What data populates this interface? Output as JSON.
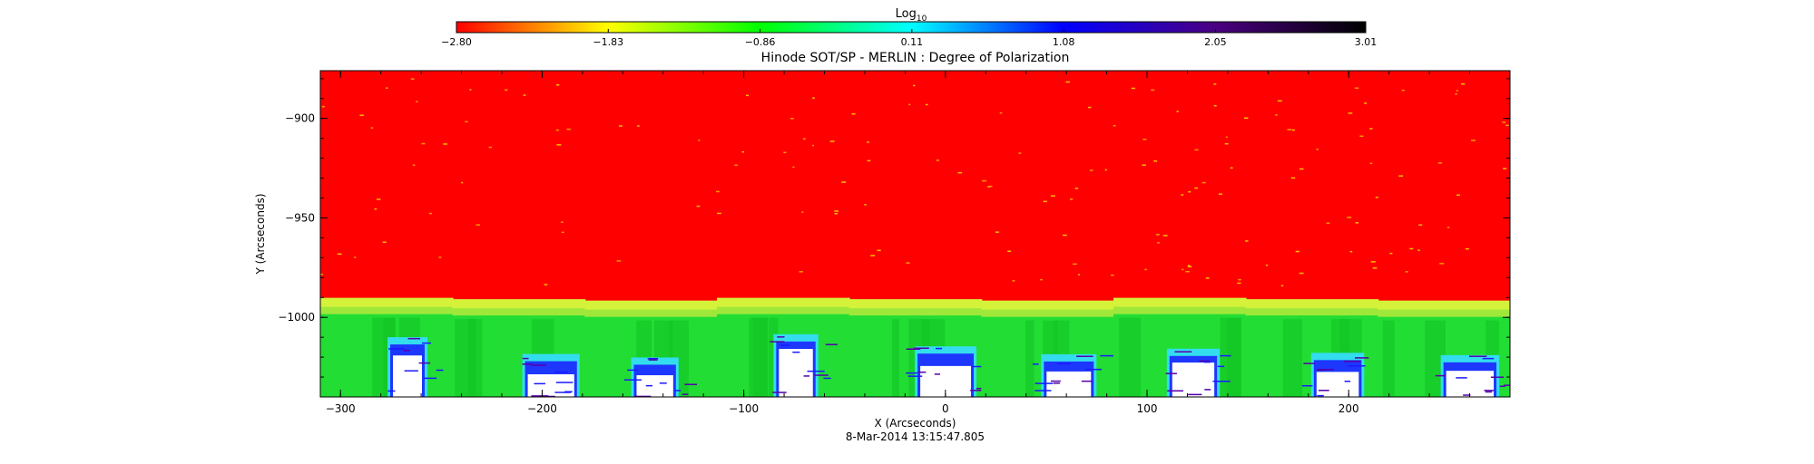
{
  "chart_data": {
    "type": "heatmap",
    "title": "Hinode SOT/SP - MERLIN : Degree of Polarization",
    "xlabel": "X (Arcseconds)",
    "ylabel": "Y (Arcseconds)",
    "timestamp": "8-Mar-2014 13:15:47.805",
    "xlim": [
      -310,
      280
    ],
    "ylim": [
      -1040,
      -876
    ],
    "x_ticks": [
      {
        "value": -300,
        "label": "−300"
      },
      {
        "value": -200,
        "label": "−200"
      },
      {
        "value": -100,
        "label": "−100"
      },
      {
        "value": 0,
        "label": "0"
      },
      {
        "value": 100,
        "label": "100"
      },
      {
        "value": 200,
        "label": "200"
      }
    ],
    "y_ticks": [
      {
        "value": -900,
        "label": "−900"
      },
      {
        "value": -950,
        "label": "−950"
      },
      {
        "value": -1000,
        "label": "−1000"
      }
    ],
    "limb_y": -992,
    "colorbar": {
      "label_main": "Log",
      "label_sub": "10",
      "range": [
        -2.8,
        3.01
      ],
      "ticks": [
        {
          "value": -2.8,
          "label": "−2.80"
        },
        {
          "value": -1.83,
          "label": "−1.83"
        },
        {
          "value": -0.86,
          "label": "−0.86"
        },
        {
          "value": 0.11,
          "label": "0.11"
        },
        {
          "value": 1.08,
          "label": "1.08"
        },
        {
          "value": 2.05,
          "label": "2.05"
        },
        {
          "value": 3.01,
          "label": "3.01"
        }
      ],
      "colors": [
        "#ff0000",
        "#ffff00",
        "#00ff00",
        "#00ffff",
        "#0000ff",
        "#4b0082",
        "#000000"
      ]
    },
    "colors": {
      "sky": "#ff0000",
      "limb_band": "#d4f23a",
      "disk": "#22dd33",
      "disk_dark": "#12c424",
      "strong": "#1a1aff",
      "saturated": "#ffffff"
    }
  }
}
